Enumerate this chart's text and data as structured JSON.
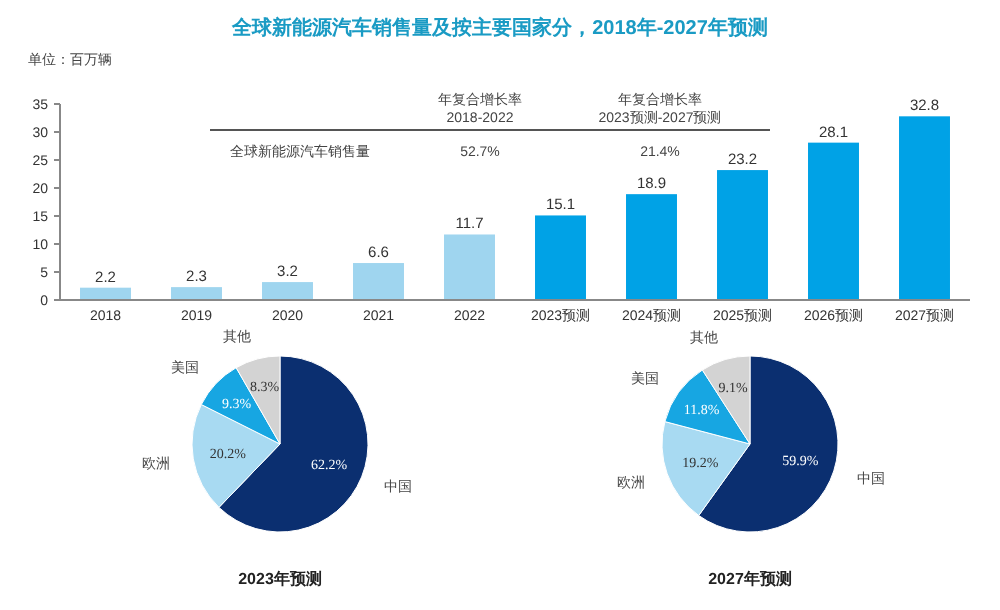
{
  "chart_data": [
    {
      "type": "bar",
      "title": "全球新能源汽车销售量及按主要国家分，2018年-2027年预测",
      "categories": [
        "2018",
        "2019",
        "2020",
        "2021",
        "2022",
        "2023预测",
        "2024预测",
        "2025预测",
        "2026预测",
        "2027预测"
      ],
      "values": [
        2.2,
        2.3,
        3.2,
        6.6,
        11.7,
        15.1,
        18.9,
        23.2,
        28.1,
        32.8
      ],
      "colors": [
        "#9fd5ef",
        "#9fd5ef",
        "#9fd5ef",
        "#9fd5ef",
        "#9fd5ef",
        "#00a2e6",
        "#00a2e6",
        "#00a2e6",
        "#00a2e6",
        "#00a2e6"
      ],
      "ylim": [
        0,
        35
      ],
      "yticks": [
        0,
        5,
        10,
        15,
        20,
        25,
        30,
        35
      ],
      "data_labels": true,
      "annotations": [
        "单位：百万辆",
        "年复合增长率",
        "2018-2022",
        "年复合增长率",
        "2023预测-2027预测",
        "全球新能源汽车销售量",
        "52.7%",
        "21.4%"
      ]
    },
    {
      "type": "pie",
      "title": "2023年预测",
      "categories": [
        "中国",
        "欧洲",
        "美国",
        "其他"
      ],
      "values": [
        62.2,
        20.2,
        9.3,
        8.3
      ],
      "colors": [
        "#0b2f70",
        "#a8daf2",
        "#17a6e2",
        "#d3d3d3"
      ],
      "value_labels": [
        "62.2%",
        "20.2%",
        "9.3%",
        "8.3%"
      ]
    },
    {
      "type": "pie",
      "title": "2027年预测",
      "categories": [
        "中国",
        "欧洲",
        "美国",
        "其他"
      ],
      "values": [
        59.9,
        19.2,
        11.8,
        9.1
      ],
      "colors": [
        "#0b2f70",
        "#a8daf2",
        "#17a6e2",
        "#d3d3d3"
      ],
      "value_labels": [
        "59.9%",
        "19.2%",
        "11.8%",
        "9.1%"
      ]
    }
  ]
}
